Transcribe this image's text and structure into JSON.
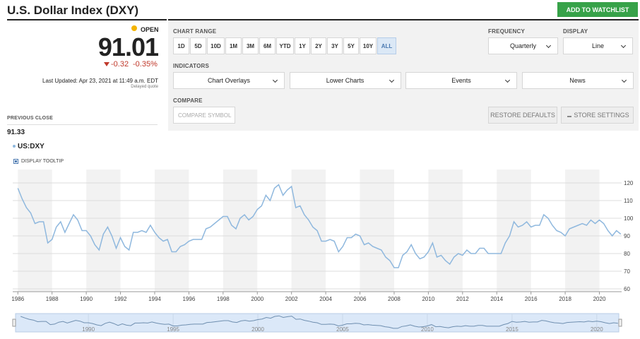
{
  "header": {
    "title": "U.S. Dollar Index (DXY)",
    "watchlist_button": "ADD TO WATCHLIST"
  },
  "quote": {
    "status": "OPEN",
    "price": "91.01",
    "change": "-0.32",
    "change_percent": "-0.35%",
    "last_updated": "Last Updated: Apr 23, 2021 at 11:49 a.m. EDT",
    "delay_note": "Delayed quote",
    "previous_close_label": "PREVIOUS CLOSE",
    "previous_close": "91.33"
  },
  "controls": {
    "chart_range_label": "CHART RANGE",
    "ranges": [
      "1D",
      "5D",
      "10D",
      "1M",
      "3M",
      "6M",
      "YTD",
      "1Y",
      "2Y",
      "3Y",
      "5Y",
      "10Y",
      "ALL"
    ],
    "selected_range": "ALL",
    "frequency_label": "FREQUENCY",
    "frequency": "Quarterly",
    "display_label": "DISPLAY",
    "display": "Line",
    "indicators_label": "INDICATORS",
    "indicators": [
      "Chart Overlays",
      "Lower Charts",
      "Events",
      "News"
    ],
    "compare_label": "COMPARE",
    "compare_placeholder": "COMPARE SYMBOL",
    "restore_button": "RESTORE DEFAULTS",
    "store_button": "STORE SETTINGS",
    "legend_symbol": "US:DXY",
    "tooltip_toggle": "DISPLAY TOOLTIP"
  },
  "chart_data": {
    "type": "line",
    "color": "#8fb8de",
    "series": [
      {
        "name": "US:DXY",
        "color": "#8fb8de",
        "values": [
          117,
          111,
          106,
          103,
          97,
          98,
          98,
          86,
          88,
          95,
          98,
          92,
          97,
          102,
          99,
          93,
          93,
          90,
          85,
          82,
          91,
          95,
          90,
          83,
          89,
          84,
          82,
          92,
          92,
          93,
          92,
          96,
          92,
          89,
          87,
          88,
          81,
          81,
          84,
          85,
          87,
          88,
          88,
          88,
          94,
          95,
          97,
          99,
          101,
          101,
          96,
          94,
          100,
          102,
          99,
          101,
          105,
          107,
          113,
          110,
          117,
          119,
          113,
          116,
          118,
          106,
          107,
          102,
          99,
          95,
          93,
          87,
          87,
          88,
          87,
          81,
          84,
          89,
          89,
          91,
          90,
          85,
          86,
          84,
          83,
          82,
          78,
          76,
          72,
          72,
          79,
          81,
          85,
          80,
          77,
          78,
          81,
          86,
          78,
          79,
          76,
          74,
          78,
          80,
          79,
          82,
          80,
          80,
          83,
          83,
          80,
          80,
          80,
          80,
          86,
          90,
          98,
          95,
          96,
          98,
          95,
          96,
          96,
          102,
          100,
          96,
          93,
          92,
          90,
          94,
          95,
          96,
          97,
          96,
          99,
          97,
          99,
          97,
          93,
          90,
          93,
          91
        ]
      }
    ],
    "x": [
      1986,
      1986.25,
      1986.5,
      1986.75,
      1987,
      1987.25,
      1987.5,
      1987.75,
      1988,
      1988.25,
      1988.5,
      1988.75,
      1989,
      1989.25,
      1989.5,
      1989.75,
      1990,
      1990.25,
      1990.5,
      1990.75,
      1991,
      1991.25,
      1991.5,
      1991.75,
      1992,
      1992.25,
      1992.5,
      1992.75,
      1993,
      1993.25,
      1993.5,
      1993.75,
      1994,
      1994.25,
      1994.5,
      1994.75,
      1995,
      1995.25,
      1995.5,
      1995.75,
      1996,
      1996.25,
      1996.5,
      1996.75,
      1997,
      1997.25,
      1997.5,
      1997.75,
      1998,
      1998.25,
      1998.5,
      1998.75,
      1999,
      1999.25,
      1999.5,
      1999.75,
      2000,
      2000.25,
      2000.5,
      2000.75,
      2001,
      2001.25,
      2001.5,
      2001.75,
      2002,
      2002.25,
      2002.5,
      2002.75,
      2003,
      2003.25,
      2003.5,
      2003.75,
      2004,
      2004.25,
      2004.5,
      2004.75,
      2005,
      2005.25,
      2005.5,
      2005.75,
      2006,
      2006.25,
      2006.5,
      2006.75,
      2007,
      2007.25,
      2007.5,
      2007.75,
      2008,
      2008.25,
      2008.5,
      2008.75,
      2009,
      2009.25,
      2009.5,
      2009.75,
      2010,
      2010.25,
      2010.5,
      2010.75,
      2011,
      2011.25,
      2011.5,
      2011.75,
      2012,
      2012.25,
      2012.5,
      2012.75,
      2013,
      2013.25,
      2013.5,
      2013.75,
      2014,
      2014.25,
      2014.5,
      2014.75,
      2015,
      2015.25,
      2015.5,
      2015.75,
      2016,
      2016.25,
      2016.5,
      2016.75,
      2017,
      2017.25,
      2017.5,
      2017.75,
      2018,
      2018.25,
      2018.5,
      2018.75,
      2019,
      2019.25,
      2019.5,
      2019.75,
      2020,
      2020.25,
      2020.5,
      2020.75,
      2021,
      2021.25
    ],
    "xlim": [
      1985.7,
      2021.3
    ],
    "xticks": [
      1986,
      1988,
      1990,
      1992,
      1994,
      1996,
      1998,
      2000,
      2002,
      2004,
      2006,
      2008,
      2010,
      2012,
      2014,
      2016,
      2018,
      2020
    ],
    "ylim": [
      58.4,
      127.6
    ],
    "yticks": [
      60,
      70,
      80,
      90,
      100,
      110,
      120
    ],
    "grid": true,
    "navigator_xticks": [
      1990,
      1995,
      2000,
      2005,
      2010,
      2015,
      2020
    ]
  }
}
